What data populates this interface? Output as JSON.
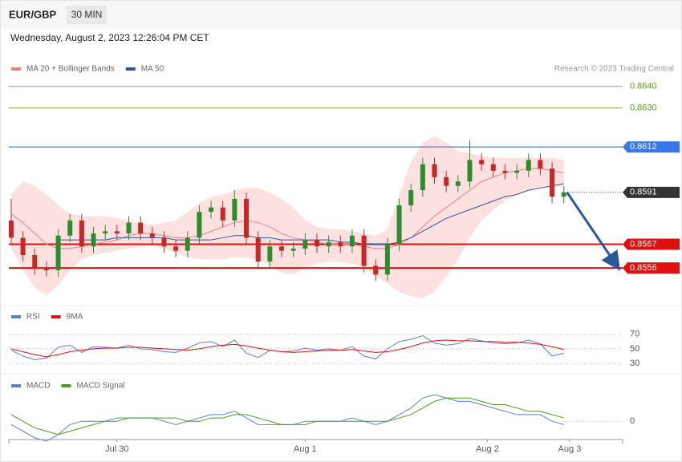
{
  "header": {
    "symbol": "EUR/GBP",
    "interval": "30 MIN",
    "timestamp": "Wednesday, August 2, 2023 12:26:04 PM CET"
  },
  "chart_data": [
    {
      "type": "candlestick",
      "source": "Research © 2023 Trading Central",
      "xlim": [
        -0.2,
        52
      ],
      "ylim": [
        0.8539,
        0.8654
      ],
      "colors": {
        "up": "#2e8b2e",
        "down": "#c62828"
      },
      "open": [
        0.8578,
        0.857,
        0.8562,
        0.8556,
        0.8555,
        0.8571,
        0.8578,
        0.8566,
        0.8572,
        0.8573,
        0.8572,
        0.8577,
        0.8572,
        0.857,
        0.8566,
        0.8564,
        0.857,
        0.8582,
        0.8584,
        0.8578,
        0.8588,
        0.857,
        0.8559,
        0.8566,
        0.8564,
        0.8565,
        0.8569,
        0.8566,
        0.8568,
        0.8566,
        0.8571,
        0.8557,
        0.8553,
        0.8567,
        0.8585,
        0.8592,
        0.8604,
        0.8598,
        0.8594,
        0.8596,
        0.8606,
        0.8604,
        0.8601,
        0.86,
        0.8601,
        0.8606,
        0.8602,
        0.8589
      ],
      "high": [
        0.8588,
        0.8573,
        0.8565,
        0.8559,
        0.8574,
        0.8581,
        0.8581,
        0.8575,
        0.8576,
        0.8576,
        0.858,
        0.858,
        0.8575,
        0.8573,
        0.8569,
        0.8573,
        0.8585,
        0.8587,
        0.8587,
        0.8592,
        0.8591,
        0.8573,
        0.8569,
        0.8569,
        0.8568,
        0.8572,
        0.8572,
        0.8571,
        0.8571,
        0.8574,
        0.8574,
        0.856,
        0.857,
        0.8588,
        0.8595,
        0.8607,
        0.8607,
        0.8601,
        0.8599,
        0.8615,
        0.8609,
        0.8607,
        0.8604,
        0.8604,
        0.8609,
        0.8609,
        0.8605,
        0.8594
      ],
      "low": [
        0.8567,
        0.8559,
        0.8553,
        0.8552,
        0.8552,
        0.8568,
        0.8563,
        0.8563,
        0.8569,
        0.8569,
        0.8569,
        0.8569,
        0.8567,
        0.8563,
        0.8561,
        0.8561,
        0.8567,
        0.8579,
        0.8575,
        0.8575,
        0.8567,
        0.8556,
        0.8556,
        0.8561,
        0.8561,
        0.8562,
        0.8563,
        0.8563,
        0.8563,
        0.8563,
        0.8554,
        0.855,
        0.855,
        0.8564,
        0.8582,
        0.8589,
        0.8595,
        0.8591,
        0.8591,
        0.8593,
        0.8601,
        0.8598,
        0.8597,
        0.8597,
        0.8598,
        0.8599,
        0.8586,
        0.8586
      ],
      "close": [
        0.857,
        0.8562,
        0.8556,
        0.8555,
        0.8571,
        0.8578,
        0.8566,
        0.8572,
        0.8573,
        0.8572,
        0.8577,
        0.8572,
        0.857,
        0.8566,
        0.8564,
        0.857,
        0.8582,
        0.8584,
        0.8578,
        0.8588,
        0.857,
        0.8559,
        0.8566,
        0.8564,
        0.8565,
        0.8569,
        0.8566,
        0.8568,
        0.8566,
        0.8571,
        0.8557,
        0.8553,
        0.8567,
        0.8585,
        0.8592,
        0.8604,
        0.8598,
        0.8594,
        0.8596,
        0.8606,
        0.8604,
        0.8601,
        0.86,
        0.8601,
        0.8606,
        0.8602,
        0.8589,
        0.8591
      ],
      "series": [
        {
          "name": "MA 20 + Bollinger Bands",
          "color": "#f08080",
          "band_color": "#fde0e0",
          "values": [
            0.8581,
            0.8577,
            0.8572,
            0.8567,
            0.8565,
            0.8565,
            0.8566,
            0.8567,
            0.8568,
            0.8569,
            0.8571,
            0.8572,
            0.8572,
            0.8571,
            0.857,
            0.857,
            0.8571,
            0.8573,
            0.8575,
            0.8577,
            0.8578,
            0.8577,
            0.8575,
            0.8572,
            0.857,
            0.8569,
            0.8568,
            0.8567,
            0.8567,
            0.8567,
            0.8566,
            0.8565,
            0.8565,
            0.8567,
            0.857,
            0.8575,
            0.858,
            0.8584,
            0.8588,
            0.8592,
            0.8596,
            0.8598,
            0.86,
            0.8601,
            0.8602,
            0.8602,
            0.8601,
            0.86
          ],
          "upper": [
            0.859,
            0.8596,
            0.8594,
            0.859,
            0.8585,
            0.8581,
            0.858,
            0.858,
            0.858,
            0.8579,
            0.8578,
            0.8577,
            0.8576,
            0.8577,
            0.8578,
            0.8582,
            0.8586,
            0.8589,
            0.859,
            0.8592,
            0.8593,
            0.8593,
            0.8591,
            0.8588,
            0.8584,
            0.8578,
            0.8575,
            0.8574,
            0.8574,
            0.8573,
            0.8572,
            0.8571,
            0.8574,
            0.859,
            0.8605,
            0.8614,
            0.8617,
            0.8614,
            0.861,
            0.8609,
            0.8608,
            0.8607,
            0.8607,
            0.8607,
            0.8607,
            0.8607,
            0.8607,
            0.8606
          ],
          "lower": [
            0.8565,
            0.8555,
            0.8547,
            0.8543,
            0.8548,
            0.8555,
            0.856,
            0.8562,
            0.8563,
            0.8564,
            0.8565,
            0.8566,
            0.8566,
            0.8565,
            0.8563,
            0.8561,
            0.856,
            0.856,
            0.856,
            0.8561,
            0.8561,
            0.856,
            0.8557,
            0.8554,
            0.8553,
            0.8556,
            0.8558,
            0.8559,
            0.8559,
            0.8558,
            0.8556,
            0.8552,
            0.8549,
            0.8545,
            0.8543,
            0.8542,
            0.8545,
            0.8552,
            0.856,
            0.857,
            0.8578,
            0.8583,
            0.8587,
            0.859,
            0.8592,
            0.8593,
            0.8593,
            0.8594
          ]
        },
        {
          "name": "MA 50",
          "color": "#2b5797",
          "values": [
            null,
            null,
            null,
            null,
            0.8569,
            0.8569,
            0.8569,
            0.8569,
            0.8569,
            0.857,
            0.857,
            0.857,
            0.857,
            0.857,
            0.8569,
            0.8569,
            0.8569,
            0.8569,
            0.857,
            0.8571,
            0.8571,
            0.857,
            0.857,
            0.8569,
            0.8569,
            0.8569,
            0.8569,
            0.8569,
            0.8568,
            0.8568,
            0.8567,
            0.8567,
            0.8567,
            0.8568,
            0.857,
            0.8573,
            0.8576,
            0.8579,
            0.8581,
            0.8583,
            0.8585,
            0.8587,
            0.8589,
            0.859,
            0.8592,
            0.8593,
            0.8594,
            0.8595
          ]
        }
      ],
      "levels": [
        {
          "value": 0.864,
          "label": "0.8640",
          "color": "#5a9e1e",
          "style": "thin"
        },
        {
          "value": 0.863,
          "label": "0.8630",
          "color": "#5a9e1e",
          "style": "thin"
        },
        {
          "value": 0.8612,
          "label": "0.8612",
          "color": "#3b78e7",
          "style": "solid"
        },
        {
          "value": 0.8591,
          "label": "0.8591",
          "color": "#333333",
          "style": "dotted"
        },
        {
          "value": 0.8567,
          "label": "0.8567",
          "color": "#e01010",
          "style": "thick"
        },
        {
          "value": 0.8556,
          "label": "0.8556",
          "color": "#e01010",
          "style": "thick"
        }
      ]
    },
    {
      "type": "line",
      "xlim": [
        -0.2,
        52
      ],
      "ylim": [
        20,
        83
      ],
      "yticks": [
        30,
        50,
        70
      ],
      "series": [
        {
          "name": "RSI",
          "color": "#5b7fd6",
          "values": [
            48,
            40,
            35,
            37,
            52,
            55,
            45,
            53,
            52,
            51,
            55,
            50,
            49,
            46,
            45,
            51,
            58,
            60,
            53,
            62,
            44,
            38,
            48,
            46,
            47,
            51,
            48,
            50,
            48,
            53,
            40,
            36,
            50,
            60,
            63,
            68,
            58,
            55,
            57,
            64,
            61,
            58,
            57,
            58,
            62,
            57,
            40,
            44
          ]
        },
        {
          "name": "9MA",
          "color": "#e01010",
          "values": [
            50,
            46,
            42,
            39,
            42,
            46,
            48,
            50,
            51,
            51,
            52,
            52,
            51,
            50,
            49,
            48,
            50,
            53,
            55,
            56,
            54,
            51,
            48,
            46,
            45,
            46,
            47,
            48,
            48,
            49,
            47,
            45,
            46,
            49,
            53,
            58,
            61,
            62,
            61,
            61,
            60,
            60,
            59,
            59,
            58,
            56,
            53,
            49
          ]
        }
      ]
    },
    {
      "type": "line",
      "xlim": [
        -0.2,
        52
      ],
      "ylim": [
        -0.0006,
        0.0009
      ],
      "yticks": [
        0
      ],
      "xticks": [
        {
          "value": 9,
          "label": "Jul 30"
        },
        {
          "value": 25,
          "label": "Aug 1"
        },
        {
          "value": 40.5,
          "label": "Aug 2"
        },
        {
          "value": 47.5,
          "label": "Aug 3"
        }
      ],
      "series": [
        {
          "name": "MACD",
          "color": "#5b7fd6",
          "values": [
            -0.0001,
            -0.0003,
            -0.0005,
            -0.0006,
            -0.0004,
            -0.0001,
            0,
            0,
            0,
            0.0001,
            0.0001,
            0.0001,
            0.0001,
            0,
            -0.0001,
            0,
            0.0001,
            0.0002,
            0.0002,
            0.0003,
            0.0001,
            -0.0001,
            -0.0001,
            -0.0001,
            -0.0001,
            0,
            0,
            0,
            0,
            0.0001,
            0,
            -0.0001,
            0,
            0.0002,
            0.0004,
            0.0007,
            0.0008,
            0.0007,
            0.0006,
            0.0006,
            0.0005,
            0.0004,
            0.0003,
            0.0002,
            0.0002,
            0.0002,
            0,
            -0.0001
          ]
        },
        {
          "name": "MACD Signal",
          "color": "#4a9e1a",
          "values": [
            0.0002,
            0,
            -0.0002,
            -0.0003,
            -0.0004,
            -0.0003,
            -0.0002,
            -0.0001,
            0,
            0,
            0.0001,
            0.0001,
            0.0001,
            0.0001,
            0.0001,
            0,
            0,
            0.0001,
            0.0001,
            0.0002,
            0.0002,
            0.0001,
            0,
            -0.0001,
            -0.0001,
            -0.0001,
            0,
            0,
            0,
            0,
            0,
            0,
            0,
            0.0001,
            0.0002,
            0.0004,
            0.0006,
            0.0007,
            0.0007,
            0.0007,
            0.0006,
            0.0005,
            0.0005,
            0.0004,
            0.0003,
            0.0003,
            0.0002,
            0.0001
          ]
        }
      ]
    }
  ]
}
